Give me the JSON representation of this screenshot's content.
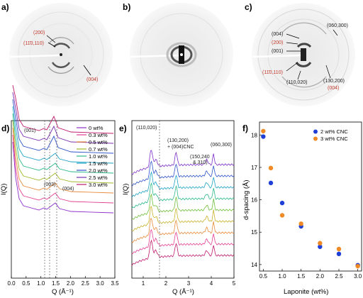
{
  "panels": {
    "a": "a)",
    "b": "b)",
    "c": "c)",
    "d": "d)",
    "e": "e)",
    "f": "f)"
  },
  "saxs_a": {
    "l200": "(200)",
    "l110": "(11̄0,110)",
    "l004": "(004)"
  },
  "saxs_c": {
    "l004": "(004)",
    "l200": "(200)",
    "l001": "(001)",
    "l110": "(11̄0,110)",
    "l060": "(060,300)",
    "l110_020": "(110,020)",
    "l130": "(130,200)",
    "l004b": "(004)"
  },
  "colors": {
    "accent_red": "#c0392b",
    "blue": "#1f3fd6",
    "orange": "#f08a24"
  },
  "panel_d": {
    "ylabel": "I(Q)",
    "xlabel": "Q (Å⁻¹)",
    "xticks": [
      "0.0",
      "0.5",
      "1.0",
      "1.5",
      "2.0",
      "2.5",
      "3.0",
      "3.5"
    ],
    "ann": {
      "p001": "(001)",
      "p003": "(003)",
      "p004": "(004)"
    },
    "legend": [
      "0 wt%",
      "0.3 wt%",
      "0.5 wt%",
      "0.7 wt%",
      "1.0 wt%",
      "1.5 wt%",
      "2.0 wt%",
      "2.5 wt%",
      "3.0 wt%"
    ],
    "series_colors": [
      "#8e2fc9",
      "#e43f92",
      "#e88a3a",
      "#a3b628",
      "#2bb88a",
      "#1ea3c5",
      "#2d52c8",
      "#7a2fb0",
      "#c0196d"
    ]
  },
  "panel_e": {
    "ylabel": "I(Q)",
    "xlabel": "Q (Å⁻¹)",
    "xticks": [
      "1",
      "2",
      "3",
      "4",
      "5"
    ],
    "ann": {
      "a1": "(110,020)",
      "a2": "(130,200)",
      "a2b": "+ (004)CNC",
      "a3": "(150,240",
      "a3b": "& 310)",
      "a4": "(060,300)"
    },
    "series_colors": [
      "#7d2fc9",
      "#2d52c8",
      "#1ea3c5",
      "#2bb88a",
      "#6fbf3a",
      "#c9b12a",
      "#e88a3a",
      "#e43f92",
      "#c0196d"
    ]
  },
  "chart_data": {
    "type": "scatter",
    "xlabel": "Laponite (wt%)",
    "ylabel": "d-spacing (Å)",
    "xlim": [
      0.4,
      3.1
    ],
    "ylim": [
      13.8,
      18.4
    ],
    "xticks": [
      "0.5",
      "1.0",
      "1.5",
      "2.0",
      "2.5",
      "3.0"
    ],
    "yticks": [
      "14",
      "15",
      "16",
      "17",
      "18"
    ],
    "legend_position": "top-right",
    "series": [
      {
        "name": "2 wt% CNC",
        "color": "#1f3fd6",
        "x": [
          0.5,
          0.7,
          1.0,
          1.5,
          2.0,
          2.5,
          3.0
        ],
        "y": [
          17.95,
          16.52,
          15.9,
          15.18,
          14.55,
          14.33,
          13.98
        ]
      },
      {
        "name": "3 wt% CNC",
        "color": "#f08a24",
        "x": [
          0.5,
          0.7,
          1.0,
          1.5,
          2.0,
          2.5,
          3.0
        ],
        "y": [
          18.12,
          16.98,
          15.52,
          15.26,
          14.66,
          14.48,
          13.95
        ]
      }
    ]
  }
}
